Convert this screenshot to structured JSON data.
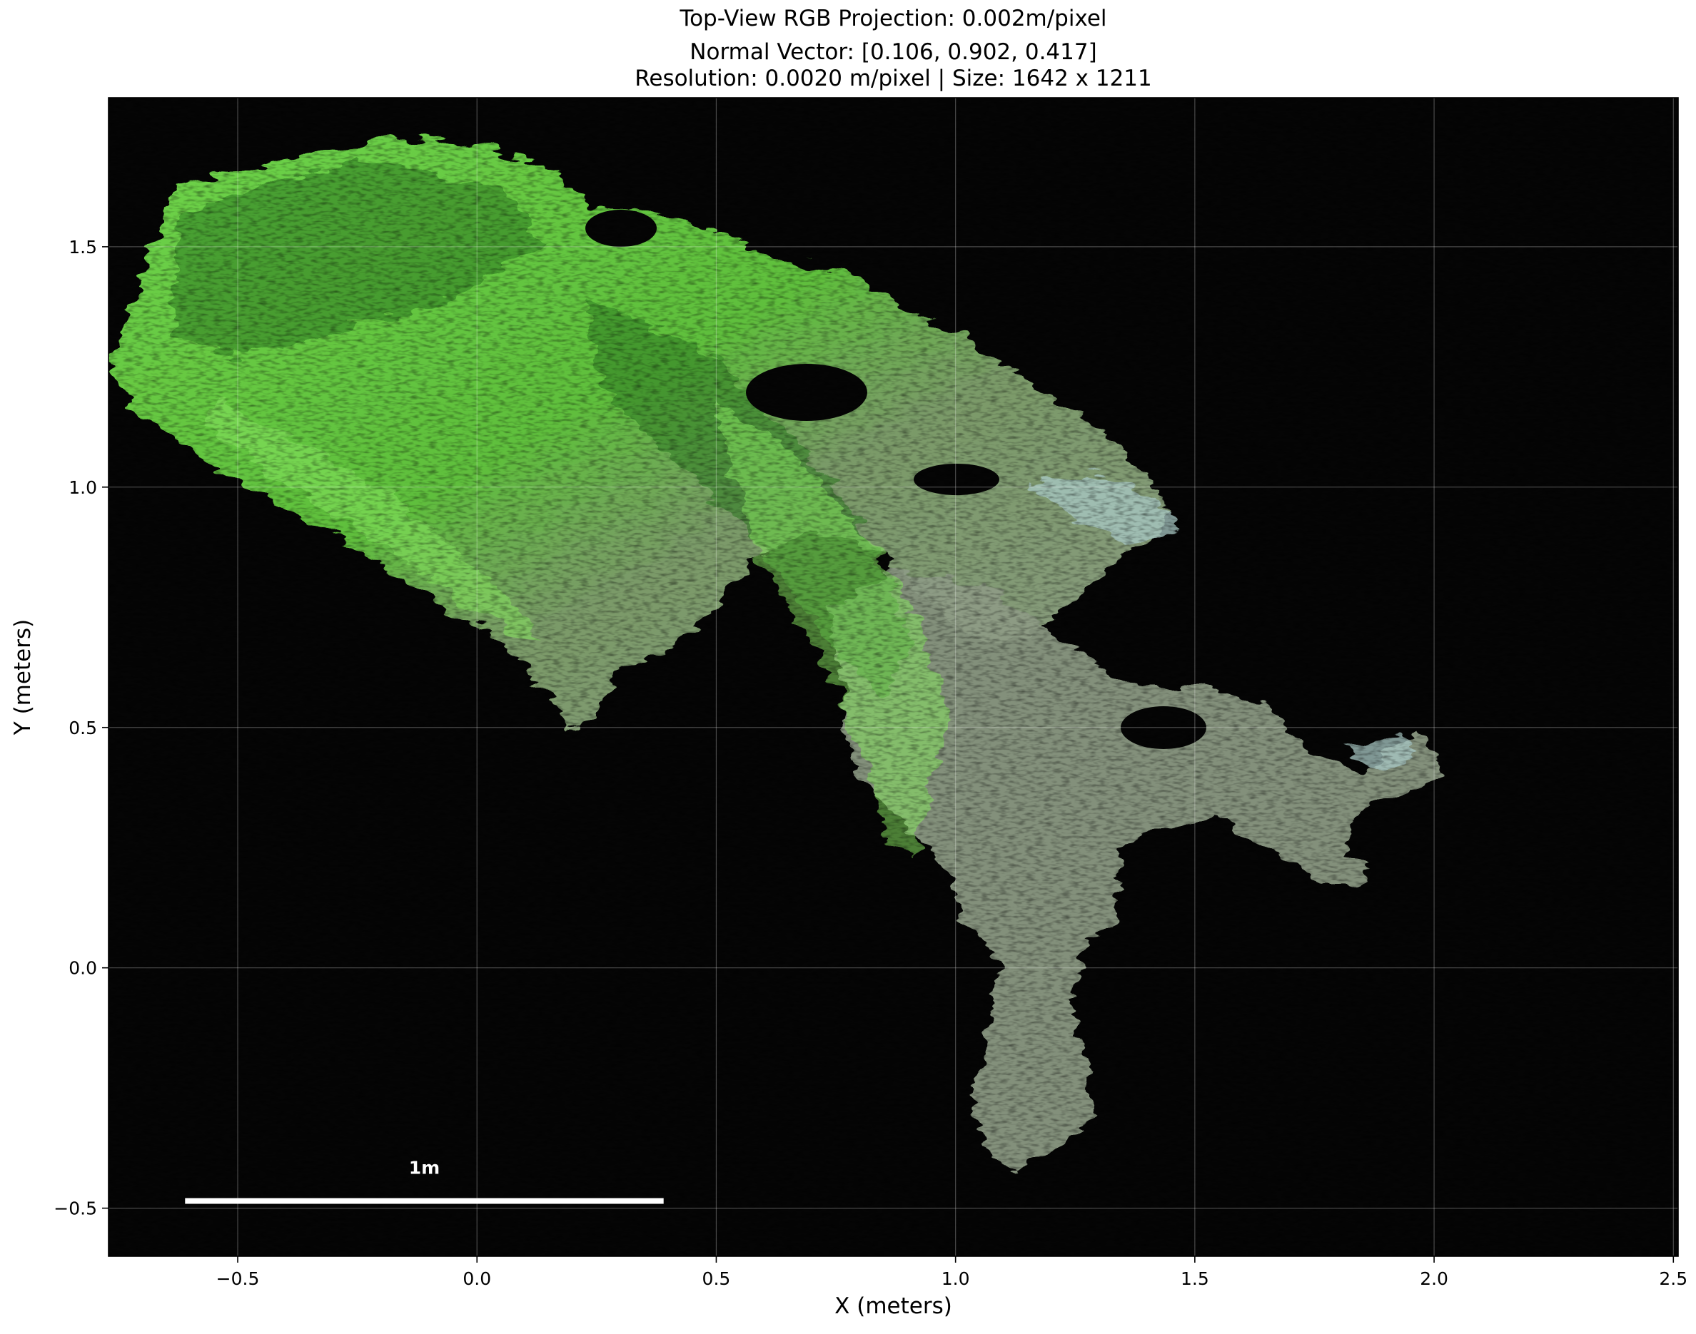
{
  "chart_data": {
    "type": "image",
    "title_lines": [
      "Top-View RGB Projection: 0.002m/pixel",
      "Normal Vector: [0.106, 0.902, 0.417]",
      "Resolution: 0.0020 m/pixel | Size: 1642 x 1211"
    ],
    "xlabel": "X (meters)",
    "ylabel": "Y (meters)",
    "xlim": [
      -0.77,
      2.51
    ],
    "ylim": [
      -0.6,
      1.81
    ],
    "x_ticks": [
      {
        "value": -0.5,
        "label": "−0.5"
      },
      {
        "value": 0.0,
        "label": "0.0"
      },
      {
        "value": 0.5,
        "label": "0.5"
      },
      {
        "value": 1.0,
        "label": "1.0"
      },
      {
        "value": 1.5,
        "label": "1.5"
      },
      {
        "value": 2.0,
        "label": "2.0"
      },
      {
        "value": 2.5,
        "label": "2.5"
      }
    ],
    "y_ticks": [
      {
        "value": -0.5,
        "label": "−0.5"
      },
      {
        "value": 0.0,
        "label": "0.0"
      },
      {
        "value": 0.5,
        "label": "0.5"
      },
      {
        "value": 1.0,
        "label": "1.0"
      },
      {
        "value": 1.5,
        "label": "1.5"
      }
    ],
    "grid": true,
    "background_color": "#050505",
    "vegetation_colors": {
      "bright_green": "#6fd44a",
      "dark_green": "#2f7a22",
      "gray_green": "#8c9a84",
      "pale_cyan": "#a9c9c6"
    },
    "scale_bar": {
      "label": "1m",
      "length_m": 1.0,
      "x_start": -0.61,
      "y": -0.485,
      "color": "#ffffff"
    }
  }
}
